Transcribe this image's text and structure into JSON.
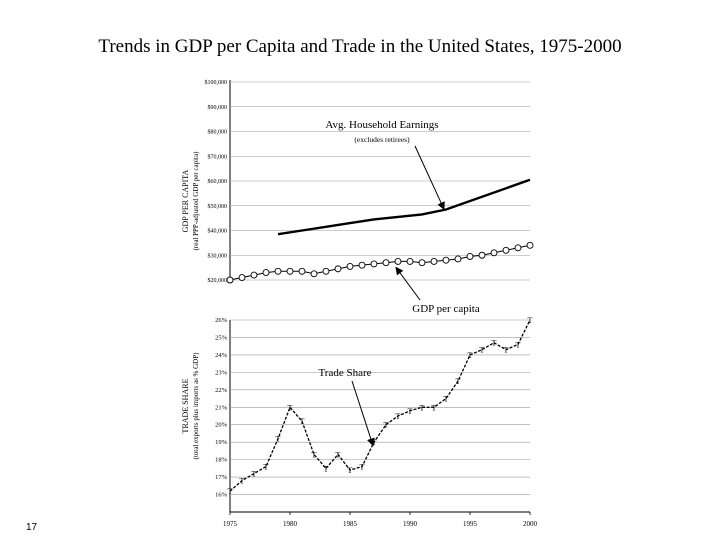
{
  "slide": {
    "title": "Trends in GDP per Capita and Trade in the United States, 1975-2000",
    "number": "17"
  },
  "colors": {
    "grid": "#9a9a9a",
    "line": "#000000",
    "marker_fill": "#ffffff"
  },
  "chart_data": [
    {
      "type": "line",
      "title": "",
      "ylabel": "GDP PER CAPITA",
      "ylabel_sub": "(real PPP-adjusted GDP per capita)",
      "xlim": [
        1975,
        2000
      ],
      "ylim": [
        20000,
        100000
      ],
      "ytick_labels": [
        "$20,000",
        "$30,000",
        "$40,000",
        "$50,000",
        "$60,000",
        "$70,000",
        "$80,000",
        "$90,000",
        "$100,000"
      ],
      "ytick_values": [
        20000,
        30000,
        40000,
        50000,
        60000,
        70000,
        80000,
        90000,
        100000
      ],
      "grid": true,
      "series": [
        {
          "name": "Avg. Household Earnings",
          "x": [
            1979,
            1981,
            1983,
            1985,
            1987,
            1989,
            1991,
            1993,
            2000
          ],
          "y": [
            38500,
            40000,
            41500,
            43000,
            44500,
            45500,
            46500,
            48500,
            60500
          ]
        },
        {
          "name": "GDP per capita",
          "marker": "circle",
          "x": [
            1975,
            1976,
            1977,
            1978,
            1979,
            1980,
            1981,
            1982,
            1983,
            1984,
            1985,
            1986,
            1987,
            1988,
            1989,
            1990,
            1991,
            1992,
            1993,
            1994,
            1995,
            1996,
            1997,
            1998,
            1999,
            2000
          ],
          "y": [
            20000,
            21000,
            22000,
            23000,
            23500,
            23500,
            23500,
            22500,
            23500,
            24500,
            25500,
            26000,
            26500,
            27000,
            27500,
            27500,
            27000,
            27500,
            28000,
            28500,
            29500,
            30000,
            31000,
            32000,
            33000,
            34000
          ]
        }
      ],
      "annotations": [
        {
          "text": "Avg. Household Earnings",
          "subtext": "(excludes retirees)",
          "points_to_x": 1993,
          "points_to_y": 47000
        },
        {
          "text": "GDP per capita",
          "points_to_x": 1989,
          "points_to_y": 27500
        }
      ]
    },
    {
      "type": "line",
      "title": "",
      "ylabel": "TRADE SHARE",
      "ylabel_sub": "(total exports plus imports as % GDP)",
      "xlim": [
        1975,
        2000
      ],
      "ylim": [
        15,
        26
      ],
      "ytick_labels": [
        "16%",
        "17%",
        "18%",
        "19%",
        "20%",
        "21%",
        "22%",
        "23%",
        "24%",
        "25%",
        "26%"
      ],
      "ytick_values": [
        16,
        17,
        18,
        19,
        20,
        21,
        22,
        23,
        24,
        25,
        26
      ],
      "xtick_labels": [
        "1975",
        "1980",
        "1985",
        "1990",
        "1995",
        "2000"
      ],
      "xtick_values": [
        1975,
        1980,
        1985,
        1990,
        1995,
        2000
      ],
      "grid": true,
      "series": [
        {
          "name": "Trade Share",
          "marker": "T",
          "x": [
            1975,
            1976,
            1977,
            1978,
            1979,
            1980,
            1981,
            1982,
            1983,
            1984,
            1985,
            1986,
            1987,
            1988,
            1989,
            1990,
            1991,
            1992,
            1993,
            1994,
            1995,
            1996,
            1997,
            1998,
            1999,
            2000
          ],
          "y": [
            16.2,
            16.8,
            17.2,
            17.6,
            19.2,
            21.0,
            20.2,
            18.3,
            17.5,
            18.3,
            17.4,
            17.6,
            19.0,
            20.0,
            20.5,
            20.8,
            21.0,
            21.0,
            21.5,
            22.5,
            24.0,
            24.3,
            24.7,
            24.3,
            24.6,
            26.0
          ]
        }
      ],
      "annotations": [
        {
          "text": "Trade Share",
          "points_to_x": 1987,
          "points_to_y": 18.7
        }
      ]
    }
  ]
}
